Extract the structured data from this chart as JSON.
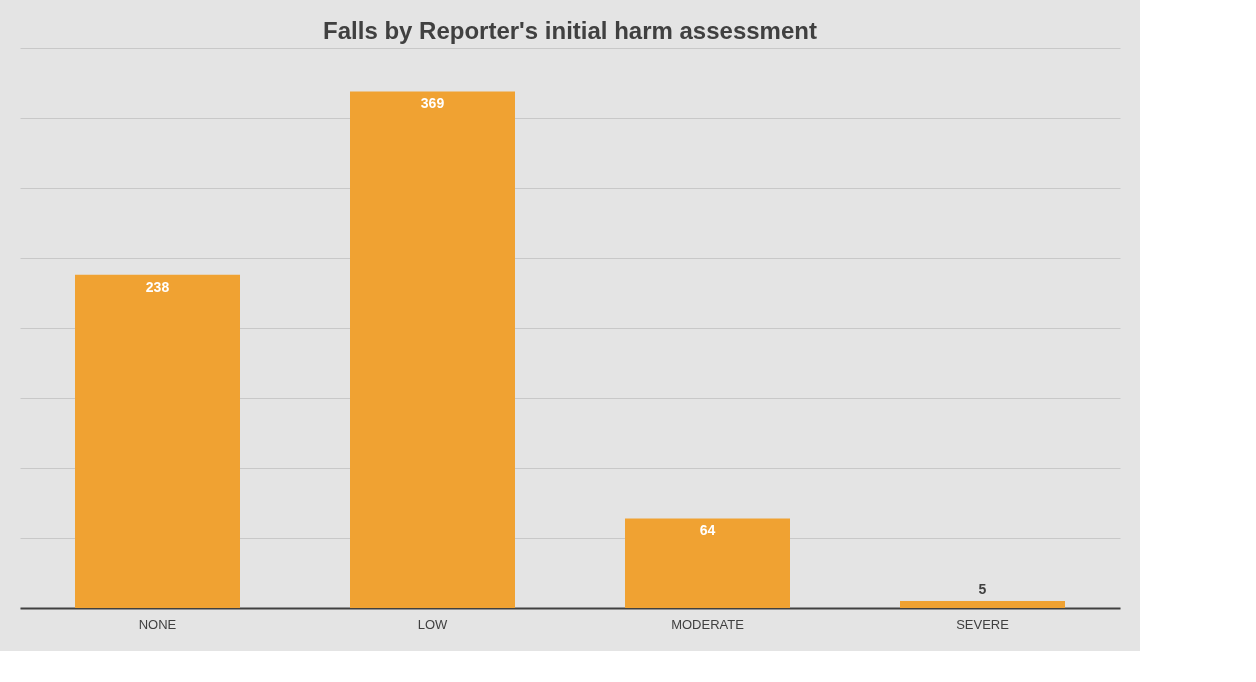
{
  "chart_data": {
    "type": "bar",
    "title": "Falls by Reporter's initial harm assessment",
    "categories": [
      "NONE",
      "LOW",
      "MODERATE",
      "SEVERE"
    ],
    "values": [
      238,
      369,
      64,
      5
    ],
    "color": "#f0a232",
    "ylim": [
      0,
      400
    ],
    "yticks": [
      {
        "value": 0,
        "label": null
      },
      {
        "value": 50,
        "label": null
      },
      {
        "value": 100,
        "label": null
      },
      {
        "value": 150,
        "label": null
      },
      {
        "value": 200,
        "label": null
      },
      {
        "value": 250,
        "label": null
      },
      {
        "value": 300,
        "label": null
      },
      {
        "value": 350,
        "label": null
      },
      {
        "value": 400,
        "label": null
      }
    ],
    "grid": "y",
    "tick_labels": "x",
    "data_labels": true
  }
}
